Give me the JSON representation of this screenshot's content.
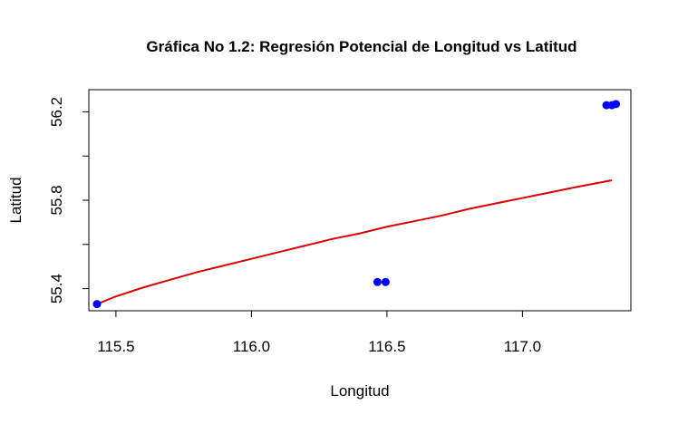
{
  "chart_data": {
    "type": "scatter",
    "title": "Gráfica No 1.2: Regresión Potencial de Longitud vs Latitud",
    "xlabel": "Longitud",
    "ylabel": "Latitud",
    "xlim": [
      115.4,
      117.4
    ],
    "ylim": [
      55.3,
      56.3
    ],
    "x_ticks": [
      115.5,
      116.0,
      116.5,
      117.0
    ],
    "x_tick_labels": [
      "115.5",
      "116.0",
      "116.5",
      "117.0"
    ],
    "y_ticks": [
      55.4,
      55.6,
      55.8,
      56.0,
      56.2
    ],
    "y_tick_labels": [
      "55.4",
      "",
      "55.8",
      "",
      "56.2"
    ],
    "grid": false,
    "points": {
      "color": "#0000ff",
      "x": [
        115.43,
        116.465,
        116.495,
        117.31,
        117.33,
        117.345
      ],
      "y": [
        55.33,
        55.43,
        55.43,
        56.23,
        56.23,
        56.235
      ]
    },
    "fit_line": {
      "color": "#dd0000",
      "x": [
        115.43,
        115.5,
        115.6,
        115.7,
        115.8,
        115.9,
        116.0,
        116.1,
        116.2,
        116.3,
        116.4,
        116.5,
        116.6,
        116.7,
        116.8,
        116.9,
        117.0,
        117.1,
        117.2,
        117.33
      ],
      "y": [
        55.33,
        55.365,
        55.405,
        55.44,
        55.475,
        55.505,
        55.535,
        55.565,
        55.595,
        55.625,
        55.65,
        55.68,
        55.705,
        55.73,
        55.76,
        55.785,
        55.81,
        55.835,
        55.86,
        55.89
      ]
    }
  }
}
